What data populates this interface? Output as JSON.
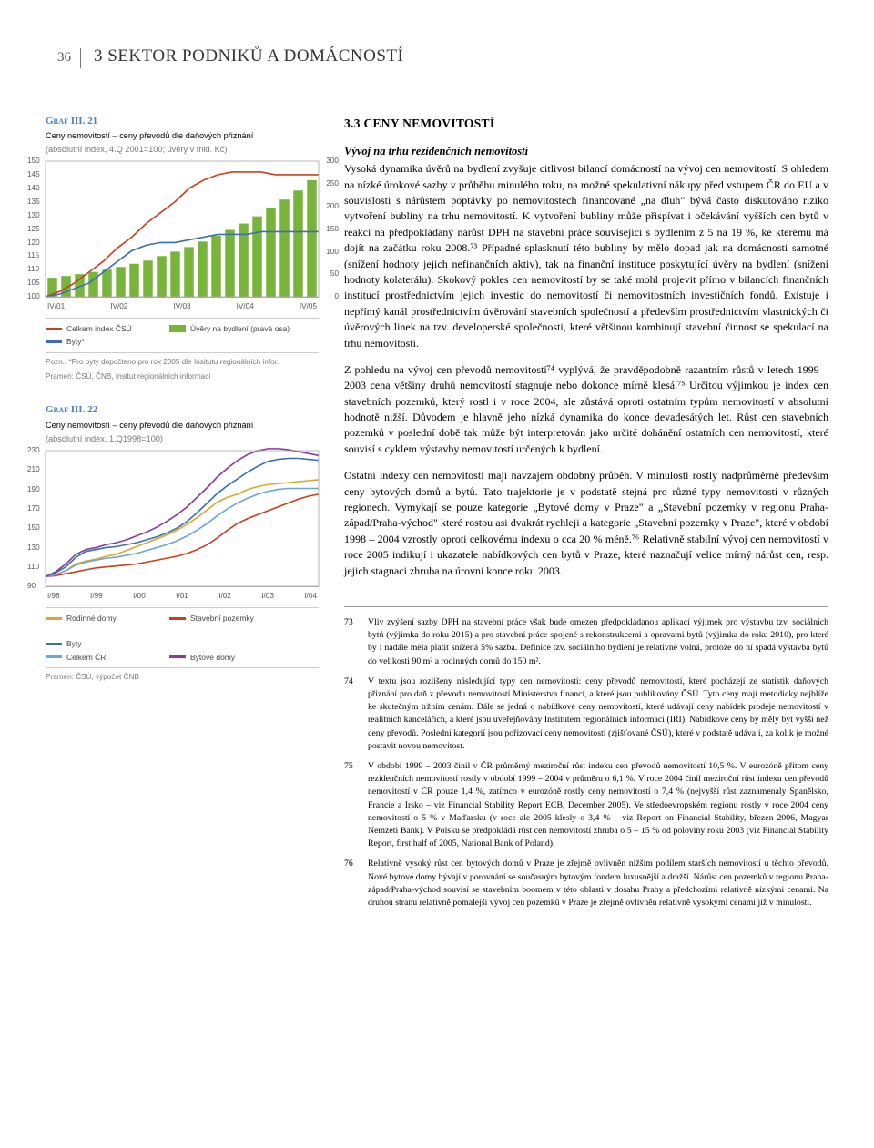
{
  "page_number": "36",
  "page_title": "3 SEKTOR PODNIKŮ A DOMÁCNOSTÍ",
  "section_heading": "3.3 CENY NEMOVITOSTÍ",
  "subsection_title": "Vývoj na trhu rezidenčních nemovitostí",
  "paragraphs": [
    "Vysoká dynamika úvěrů na bydlení zvyšuje citlivost bilancí domácností na vývoj cen nemovitostí. S ohledem na nízké úrokové sazby v průběhu minulého roku, na možné spekulativní nákupy před vstupem ČR do EU a v souvislosti s nárůstem poptávky po nemovitostech financované „na dluh\" bývá často diskutováno riziko vytvoření bubliny na trhu nemovitostí. K vytvoření bubliny může přispívat i očekávání vyšších cen bytů v reakci na předpokládaný nárůst DPH na stavební práce související s bydlením z 5 na 19 %, ke kterému má dojít na začátku roku 2008.⁷³ Případné splasknutí této bubliny by mělo dopad jak na domácnosti samotné (snížení hodnoty jejich nefinančních aktiv), tak na finanční instituce poskytující úvěry na bydlení (snížení hodnoty kolaterálu). Skokový pokles cen nemovitostí by se také mohl projevit přímo v bilancích finančních institucí prostřednictvím jejich investic do nemovitostí či nemovitostních investičních fondů. Existuje i nepřímý kanál prostřednictvím úvěrování stavebních společností a především prostřednictvím vlastnických či úvěrových linek na tzv. developerské společnosti, které většinou kombinují stavební činnost se spekulací na trhu nemovitostí.",
    "Z pohledu na vývoj cen převodů nemovitostí⁷⁴ vyplývá, že pravděpodobně razantním růstů v letech 1999 – 2003 cena většiny druhů nemovitostí stagnuje nebo dokonce mírně klesá.⁷⁵ Určitou výjimkou je index cen stavebních pozemků, který rostl i v roce 2004, ale zůstává oproti ostatním typům nemovitostí v absolutní hodnotě nižší. Důvodem je hlavně jeho nízká dynamika do konce devadesátých let. Růst cen stavebních pozemků v poslední době tak může být interpretován jako určité dohánění ostatních cen nemovitostí, které souvisí s cyklem výstavby nemovitostí určených k bydlení.",
    "Ostatní indexy cen nemovitostí mají navzájem obdobný průběh. V minulosti rostly nadprůměrně především ceny bytových domů a bytů. Tato trajektorie je v podstatě stejná pro různé typy nemovitostí v různých regionech. Vymykají se pouze kategorie „Bytové domy v Praze\" a „Stavební pozemky v regionu Praha-západ/Praha-východ\" které rostou asi dvakrát rychleji a kategorie „Stavební pozemky v Praze\", které v období 1998 – 2004 vzrostly oproti celkovému indexu o cca 20 % méně.⁷⁶ Relativně stabilní vývoj cen nemovitostí v roce 2005 indikují i ukazatele nabídkových cen bytů v Praze, které naznačují velice mírný nárůst cen, resp. jejich stagnaci zhruba na úrovni konce roku 2003."
  ],
  "footnotes": [
    {
      "num": "73",
      "text": "Vliv zvýšení sazby DPH na stavební práce však bude omezen předpokládanou aplikací výjimek pro výstavbu tzv. sociálních bytů (výjimka do roku 2015) a pro stavební práce spojené s rekonstrukcemi a opravami bytů (výjimka do roku 2010), pro které by i nadále měla platit snížená 5% sazba. Definice tzv. sociálního bydlení je relativně volná, protože do ní spadá výstavba bytů do velikosti 90 m² a rodinných domů do 150 m²."
    },
    {
      "num": "74",
      "text": "V textu jsou rozlišeny následující typy cen nemovitostí: ceny převodů nemovitostí, které pocházejí ze statistik daňových přiznání pro daň z převodu nemovitostí Ministerstva financí, a které jsou publikovány ČSÚ. Tyto ceny mají metodicky nejblíže ke skutečným tržním cenám. Dále se jedná o nabídkové ceny nemovitostí, které udávají ceny nabídek prodeje nemovitostí v realitních kancelářích, a které jsou uveřejňovány Institutem regionálních informací (IRI). Nabídkové ceny by měly být vyšší než ceny převodů. Poslední kategorií jsou pořizovací ceny nemovitostí (zjišťované ČSÚ), které v podstatě udávají, za kolik je možné postavit novou nemovitost."
    },
    {
      "num": "75",
      "text": "V období 1999 – 2003 činil v ČR průměrný meziroční růst indexu cen převodů nemovitostí 10,5 %. V eurozóně přitom ceny rezidenčních nemovitostí rostly v období 1999 – 2004 v průměru o 6,1 %. V roce 2004 činil meziroční růst indexu cen převodů nemovitostí v ČR pouze 1,4 %, zatímco v eurozóně rostly ceny nemovitostí o 7,4 % (nejvyšší růst zaznamenaly Španělsko, Francie a Irsko – viz Financial Stability Report ECB, December 2005). Ve středoevropském regionu rostly v roce 2004 ceny nemovitostí o 5 % v Maďarsku (v roce ale 2005 klesly o 3,4 % – viz Report on Financial Stability, březen 2006, Magyar Nemzeti Bank). V Polsku se předpokládá růst cen nemovitostí zhruba o 5 – 15 % od poloviny roku 2003 (viz Financial Stability Report, first half of 2005, National Bank of Poland)."
    },
    {
      "num": "76",
      "text": "Relativně vysoký růst cen bytových domů v Praze je zřejmě ovlivněn nižším podílem starších nemovitostí u těchto převodů. Nové bytové domy bývají v porovnání se současným bytovým fondem luxusnější a dražší. Nárůst cen pozemků v regionu Praha-západ/Praha-východ souvisí se stavebním boomem v této oblasti v dosahu Prahy a předchozími relativně nízkými cenami. Na druhou stranu relativně pomalejší vývoj cen pozemků v Praze je zřejmě ovlivněn relativně vysokými cenami již v minulosti."
    }
  ],
  "chart1": {
    "label": "Graf III. 21",
    "title": "Ceny nemovitostí – ceny převodů dle daňových přiznání",
    "subtitle": "(absolutní index, 4.Q 2001=100; úvěry v mld. Kč)",
    "type": "combo-bar-line",
    "x_labels": [
      "IV/01",
      "IV/02",
      "IV/03",
      "IV/04",
      "IV/05"
    ],
    "left_axis": {
      "min": 100,
      "max": 150,
      "step": 5,
      "ticks": [
        100,
        105,
        110,
        115,
        120,
        125,
        130,
        135,
        140,
        145,
        150
      ]
    },
    "right_axis": {
      "min": 0,
      "max": 300,
      "step": 50,
      "ticks": [
        0,
        50,
        100,
        150,
        200,
        250,
        300
      ]
    },
    "bars": {
      "color": "#78b43c",
      "values": [
        42,
        46,
        50,
        55,
        60,
        66,
        73,
        80,
        90,
        100,
        110,
        122,
        135,
        148,
        162,
        178,
        196,
        215,
        235,
        258
      ]
    },
    "line_red": {
      "color": "#c8401f",
      "label": "Celkem index ČSÚ",
      "values": [
        100,
        102,
        105,
        109,
        113,
        118,
        122,
        127,
        131,
        135,
        140,
        143,
        145,
        146,
        146,
        146,
        145,
        145,
        145,
        145
      ]
    },
    "line_blue": {
      "color": "#3a6fb0",
      "label": "Byty*",
      "values": [
        100,
        101,
        103,
        105,
        109,
        113,
        117,
        119,
        120,
        120,
        121,
        122,
        123,
        123,
        123,
        124,
        124,
        124,
        124,
        124
      ]
    },
    "legend_bars_label": "Úvěry na bydlení (pravá osa)",
    "note": "Pozn.: *Pro byty dopočteno pro rok 2005 dle Insitutu regionálních infor.",
    "source": "Pramen: ČSÚ, ČNB, Insitut regionálních informací",
    "bar_count": 20,
    "background": "#ffffff"
  },
  "chart2": {
    "label": "Graf III. 22",
    "title": "Ceny nemovitostí – ceny převodů dle daňových přiznání",
    "subtitle": "(absolutní index, 1.Q1998=100)",
    "type": "line",
    "x_labels": [
      "I/98",
      "I/99",
      "I/00",
      "I/01",
      "I/02",
      "I/03",
      "I/04"
    ],
    "y_axis": {
      "min": 90,
      "max": 230,
      "step": 20,
      "ticks": [
        90,
        110,
        130,
        150,
        170,
        190,
        210,
        230
      ]
    },
    "series": [
      {
        "name": "Rodinné domy",
        "color": "#d9a82e",
        "values": [
          100,
          102,
          106,
          113,
          116,
          118,
          121,
          123,
          127,
          131,
          135,
          139,
          143,
          148,
          154,
          161,
          169,
          177,
          182,
          185,
          190,
          193,
          195,
          196,
          197,
          198,
          199,
          200
        ]
      },
      {
        "name": "Stavební pozemky",
        "color": "#c8401f",
        "values": [
          100,
          101,
          103,
          105,
          107,
          109,
          110,
          111,
          112,
          113,
          115,
          117,
          119,
          121,
          124,
          128,
          133,
          140,
          148,
          155,
          160,
          164,
          168,
          172,
          176,
          180,
          183,
          185
        ]
      },
      {
        "name": "Byty",
        "color": "#3a6fb0",
        "values": [
          100,
          104,
          110,
          120,
          126,
          128,
          130,
          131,
          133,
          135,
          138,
          141,
          145,
          150,
          157,
          166,
          176,
          186,
          194,
          201,
          208,
          214,
          219,
          221,
          222,
          222,
          221,
          220
        ]
      },
      {
        "name": "Celkem ČR",
        "color": "#6ca6d9",
        "values": [
          100,
          102,
          106,
          112,
          115,
          117,
          119,
          120,
          122,
          124,
          127,
          130,
          133,
          137,
          142,
          148,
          155,
          163,
          170,
          176,
          181,
          185,
          188,
          190,
          191,
          191,
          191,
          191
        ]
      },
      {
        "name": "Bytové domy",
        "color": "#8a3c9c",
        "values": [
          100,
          105,
          113,
          123,
          128,
          130,
          133,
          135,
          138,
          142,
          146,
          151,
          157,
          164,
          172,
          182,
          192,
          203,
          212,
          220,
          226,
          230,
          232,
          232,
          231,
          229,
          227,
          225
        ]
      }
    ],
    "source": "Pramen: ČSÚ, výpočet ČNB",
    "background": "#ffffff",
    "n_points": 28
  }
}
